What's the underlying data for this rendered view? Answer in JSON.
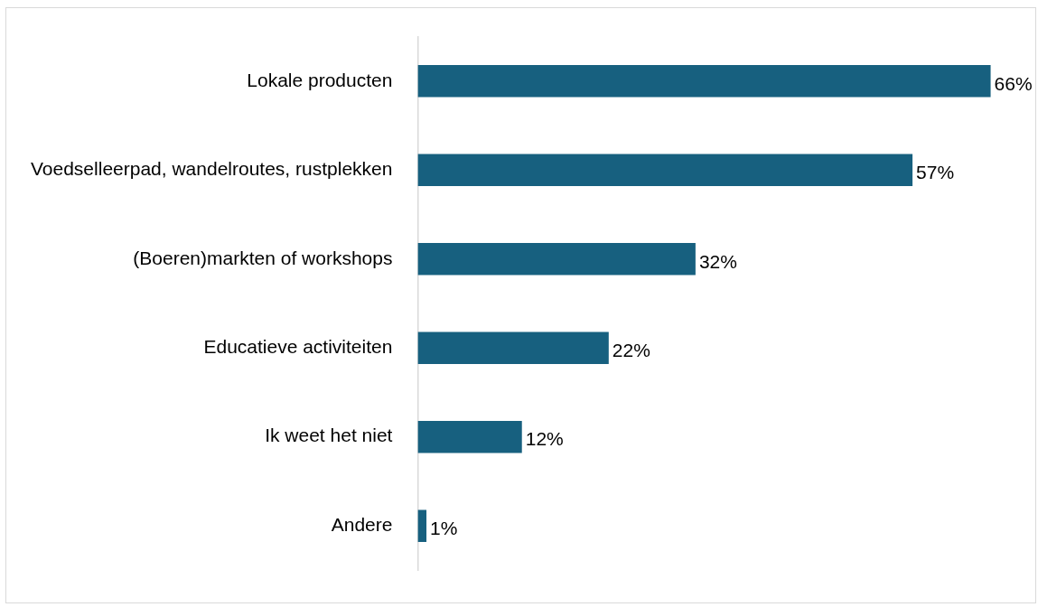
{
  "chart_data": {
    "type": "bar",
    "orientation": "horizontal",
    "categories": [
      "Lokale producten",
      "Voedselleerpad, wandelroutes, rustplekken",
      "(Boeren)markten of workshops",
      "Educatieve activiteiten",
      "Ik weet het niet",
      "Andere"
    ],
    "values": [
      66,
      57,
      32,
      22,
      12,
      1
    ],
    "value_labels": [
      "66%",
      "57%",
      "32%",
      "22%",
      "12%",
      "1%"
    ],
    "color": "#17607f",
    "grid": false,
    "legend": false
  }
}
